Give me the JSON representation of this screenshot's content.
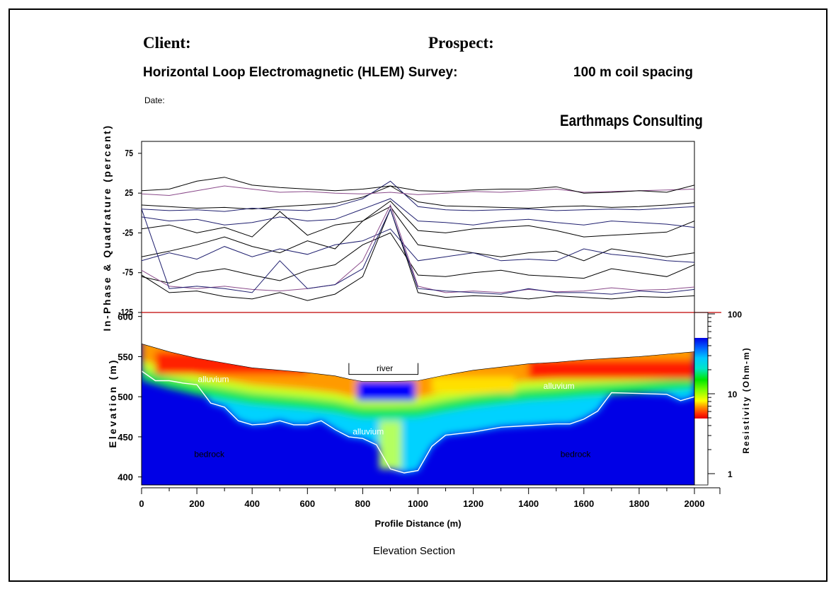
{
  "header": {
    "client_label": "Client:",
    "prospect_label": "Prospect:",
    "survey_title": "Horizontal Loop Electromagnetic (HLEM) Survey:",
    "coil_spacing": "100 m coil spacing",
    "date_label": "Date:",
    "company": "Earthmaps Consulting"
  },
  "caption": "Elevation Section",
  "chart_data": [
    {
      "type": "line",
      "ylabel": "In-Phase & Quadrature (percent)",
      "ylim": [
        -125,
        90
      ],
      "yticks": [
        75,
        25,
        -25,
        -75,
        -125
      ],
      "xlim": [
        0,
        2000
      ],
      "x": [
        0,
        100,
        200,
        300,
        400,
        500,
        600,
        700,
        800,
        900,
        1000,
        1100,
        1200,
        1300,
        1400,
        1500,
        1600,
        1700,
        1800,
        1900,
        2000
      ],
      "series": [
        {
          "color": "#000000",
          "values": [
            10,
            8,
            6,
            7,
            5,
            8,
            10,
            12,
            20,
            34,
            14,
            9,
            8,
            7,
            6,
            8,
            9,
            7,
            8,
            10,
            13
          ]
        },
        {
          "color": "#1e1e6e",
          "values": [
            5,
            3,
            4,
            2,
            6,
            4,
            3,
            8,
            18,
            40,
            8,
            4,
            3,
            4,
            5,
            3,
            4,
            5,
            4,
            6,
            8
          ]
        },
        {
          "color": "#8a4a8a",
          "values": [
            24,
            22,
            28,
            34,
            30,
            26,
            27,
            25,
            24,
            26,
            23,
            25,
            27,
            26,
            28,
            30,
            26,
            27,
            28,
            29,
            30
          ]
        },
        {
          "color": "#000000",
          "values": [
            28,
            30,
            40,
            45,
            35,
            32,
            30,
            28,
            30,
            34,
            28,
            27,
            29,
            30,
            30,
            33,
            25,
            26,
            28,
            26,
            35
          ]
        },
        {
          "color": "#000000",
          "values": [
            -20,
            -15,
            -25,
            -18,
            -30,
            2,
            -28,
            -15,
            -10,
            15,
            -22,
            -25,
            -20,
            -18,
            -16,
            -22,
            -30,
            -28,
            -26,
            -24,
            -10
          ]
        },
        {
          "color": "#1e1e6e",
          "values": [
            -5,
            -10,
            -8,
            -15,
            -12,
            -5,
            -10,
            -8,
            5,
            18,
            -10,
            -12,
            -15,
            -10,
            -8,
            -12,
            -15,
            -10,
            -12,
            -14,
            -18
          ]
        },
        {
          "color": "#000000",
          "values": [
            -55,
            -48,
            -40,
            -30,
            -42,
            -50,
            -35,
            -45,
            -10,
            8,
            -40,
            -45,
            -50,
            -55,
            -50,
            -48,
            -60,
            -45,
            -50,
            -55,
            -50
          ]
        },
        {
          "color": "#1e1e6e",
          "values": [
            -60,
            -50,
            -58,
            -42,
            -55,
            -45,
            -52,
            -40,
            -35,
            -20,
            -60,
            -55,
            -50,
            -60,
            -58,
            -60,
            -45,
            -52,
            -55,
            -60,
            -62
          ]
        },
        {
          "color": "#000000",
          "values": [
            -80,
            -88,
            -75,
            -70,
            -78,
            -85,
            -72,
            -65,
            -40,
            -25,
            -78,
            -80,
            -75,
            -72,
            -78,
            -80,
            -82,
            -70,
            -75,
            -80,
            -65
          ]
        },
        {
          "color": "#8a4a8a",
          "values": [
            -72,
            -92,
            -95,
            -92,
            -96,
            -98,
            -95,
            -90,
            -60,
            10,
            -92,
            -100,
            -98,
            -100,
            -96,
            -99,
            -98,
            -94,
            -97,
            -96,
            -93
          ]
        },
        {
          "color": "#000000",
          "values": [
            -78,
            -100,
            -98,
            -105,
            -108,
            -100,
            -110,
            -102,
            -80,
            5,
            -100,
            -106,
            -104,
            -105,
            -108,
            -104,
            -106,
            -108,
            -105,
            -106,
            -104
          ]
        },
        {
          "color": "#1e1e6e",
          "values": [
            5,
            -95,
            -92,
            -95,
            -100,
            -60,
            -95,
            -90,
            -70,
            5,
            -95,
            -98,
            -100,
            -102,
            -95,
            -100,
            -100,
            -102,
            -98,
            -100,
            -96
          ]
        }
      ]
    },
    {
      "type": "heatmap",
      "xlabel": "Profile Distance (m)",
      "ylabel": "Elevation (m)",
      "xlim": [
        0,
        2000
      ],
      "ylim": [
        390,
        605
      ],
      "xticks": [
        0,
        200,
        400,
        600,
        800,
        1000,
        1200,
        1400,
        1600,
        1800,
        2000
      ],
      "yticks": [
        600,
        550,
        500,
        450,
        400
      ],
      "colorbar": {
        "label": "Resistivity (Ohm-m)",
        "scale": "log",
        "ticks": [
          100,
          10,
          1
        ],
        "colors": [
          "#e60000",
          "#ff8c00",
          "#ffff00",
          "#00e600",
          "#00e6e6",
          "#0000e6"
        ]
      },
      "surface_profile": {
        "x": [
          0,
          100,
          200,
          300,
          400,
          500,
          600,
          700,
          750,
          800,
          900,
          1000,
          1100,
          1200,
          1300,
          1400,
          1500,
          1600,
          1700,
          1800,
          1900,
          2000
        ],
        "y": [
          566,
          556,
          548,
          542,
          536,
          533,
          530,
          526,
          522,
          519,
          519,
          520,
          527,
          533,
          537,
          541,
          543,
          546,
          548,
          550,
          553,
          556
        ]
      },
      "bedrock_profile": {
        "x": [
          0,
          50,
          100,
          150,
          200,
          250,
          300,
          350,
          400,
          450,
          500,
          550,
          600,
          650,
          700,
          750,
          800,
          850,
          900,
          950,
          1000,
          1050,
          1100,
          1200,
          1300,
          1400,
          1500,
          1550,
          1600,
          1620,
          1650,
          1700,
          1800,
          1900,
          1950,
          2000
        ],
        "y": [
          532,
          520,
          520,
          517,
          515,
          492,
          487,
          470,
          465,
          466,
          470,
          465,
          465,
          470,
          459,
          450,
          448,
          440,
          410,
          405,
          408,
          438,
          452,
          456,
          462,
          464,
          466,
          466,
          472,
          476,
          482,
          505,
          504,
          503,
          495,
          500
        ]
      },
      "annotations": [
        {
          "text": "river",
          "x": 880,
          "y": 532
        },
        {
          "text": "alluvium",
          "x": 260,
          "y": 518
        },
        {
          "text": "alluvium",
          "x": 1510,
          "y": 510
        },
        {
          "text": "alluvium",
          "x": 820,
          "y": 453
        },
        {
          "text": "bedrock",
          "x": 245,
          "y": 425
        },
        {
          "text": "bedrock",
          "x": 1570,
          "y": 425
        }
      ]
    }
  ]
}
